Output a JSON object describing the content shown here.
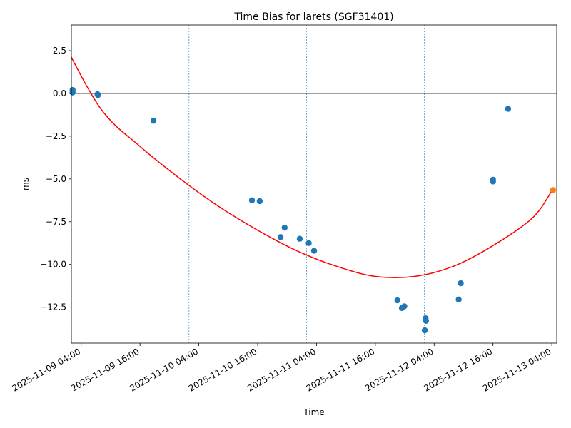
{
  "chart_data": {
    "type": "scatter",
    "title": "Time Bias for larets (SGF31401)",
    "xlabel": "Time",
    "ylabel": "ms",
    "xlim": [
      "2025-11-09T02:00",
      "2025-11-13T05:00"
    ],
    "ylim": [
      -14.6,
      4.0
    ],
    "x_ticks": [
      {
        "x": "2025-11-09T04:00",
        "label": "2025-11-09 04:00"
      },
      {
        "x": "2025-11-09T16:00",
        "label": "2025-11-09 16:00"
      },
      {
        "x": "2025-11-10T04:00",
        "label": "2025-11-10 04:00"
      },
      {
        "x": "2025-11-10T16:00",
        "label": "2025-11-10 16:00"
      },
      {
        "x": "2025-11-11T04:00",
        "label": "2025-11-11 04:00"
      },
      {
        "x": "2025-11-11T16:00",
        "label": "2025-11-11 16:00"
      },
      {
        "x": "2025-11-12T04:00",
        "label": "2025-11-12 04:00"
      },
      {
        "x": "2025-11-12T16:00",
        "label": "2025-11-12 16:00"
      },
      {
        "x": "2025-11-13T04:00",
        "label": "2025-11-13 04:00"
      }
    ],
    "y_ticks": [
      {
        "y": 2.5,
        "label": "2.5"
      },
      {
        "y": 0.0,
        "label": "0.0"
      },
      {
        "y": -2.5,
        "label": "−2.5"
      },
      {
        "y": -5.0,
        "label": "−5.0"
      },
      {
        "y": -7.5,
        "label": "−7.5"
      },
      {
        "y": -10.0,
        "label": "−10.0"
      },
      {
        "y": -12.5,
        "label": "−12.5"
      }
    ],
    "grid": false,
    "legend": "none",
    "zero_line": 0,
    "vertical_lines": [
      "2025-11-09T02:00",
      "2025-11-10T02:00",
      "2025-11-11T02:00",
      "2025-11-12T02:00",
      "2025-11-13T02:00"
    ],
    "series": [
      {
        "kind": "scatter",
        "color": "#1f77b4",
        "points": [
          {
            "x": "2025-11-09T02:15",
            "y": 0.2
          },
          {
            "x": "2025-11-09T02:15",
            "y": 0.05
          },
          {
            "x": "2025-11-09T07:20",
            "y": -0.05
          },
          {
            "x": "2025-11-09T07:25",
            "y": -0.1
          },
          {
            "x": "2025-11-09T18:45",
            "y": -1.6
          },
          {
            "x": "2025-11-10T14:50",
            "y": -6.25
          },
          {
            "x": "2025-11-10T16:25",
            "y": -6.3
          },
          {
            "x": "2025-11-10T20:40",
            "y": -8.4
          },
          {
            "x": "2025-11-10T21:30",
            "y": -7.85
          },
          {
            "x": "2025-11-11T00:35",
            "y": -8.5
          },
          {
            "x": "2025-11-11T02:25",
            "y": -8.75
          },
          {
            "x": "2025-11-11T03:30",
            "y": -9.2
          },
          {
            "x": "2025-11-11T20:30",
            "y": -12.1
          },
          {
            "x": "2025-11-11T21:25",
            "y": -12.55
          },
          {
            "x": "2025-11-11T21:55",
            "y": -12.45
          },
          {
            "x": "2025-11-12T02:05",
            "y": -13.85
          },
          {
            "x": "2025-11-12T02:15",
            "y": -13.15
          },
          {
            "x": "2025-11-12T02:20",
            "y": -13.3
          },
          {
            "x": "2025-11-12T09:00",
            "y": -12.05
          },
          {
            "x": "2025-11-12T09:25",
            "y": -11.1
          },
          {
            "x": "2025-11-12T16:00",
            "y": -5.05
          },
          {
            "x": "2025-11-12T16:00",
            "y": -5.15
          },
          {
            "x": "2025-11-12T19:05",
            "y": -0.9
          }
        ]
      },
      {
        "kind": "scatter",
        "color": "#ff7f0e",
        "points": [
          {
            "x": "2025-11-13T04:15",
            "y": -5.65
          }
        ]
      },
      {
        "kind": "line",
        "color": "#ff0000",
        "points": [
          {
            "x": "2025-11-09T00:00",
            "y": 3.2
          },
          {
            "x": "2025-11-09T08:00",
            "y": -0.9
          },
          {
            "x": "2025-11-09T16:00",
            "y": -3.1
          },
          {
            "x": "2025-11-10T00:00",
            "y": -4.95
          },
          {
            "x": "2025-11-10T08:00",
            "y": -6.6
          },
          {
            "x": "2025-11-10T16:00",
            "y": -8.0
          },
          {
            "x": "2025-11-11T00:00",
            "y": -9.2
          },
          {
            "x": "2025-11-11T08:00",
            "y": -10.1
          },
          {
            "x": "2025-11-11T16:00",
            "y": -10.7
          },
          {
            "x": "2025-11-12T00:00",
            "y": -10.7
          },
          {
            "x": "2025-11-12T08:00",
            "y": -10.1
          },
          {
            "x": "2025-11-12T16:00",
            "y": -8.9
          },
          {
            "x": "2025-11-13T00:00",
            "y": -7.3
          },
          {
            "x": "2025-11-13T04:00",
            "y": -5.7
          }
        ]
      }
    ]
  }
}
